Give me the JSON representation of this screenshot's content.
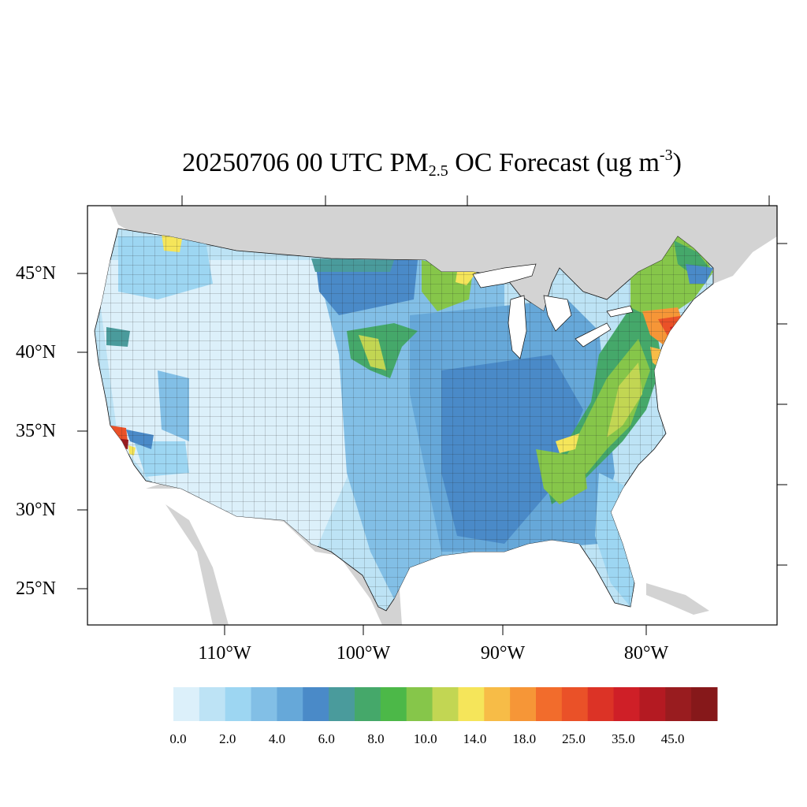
{
  "title": {
    "prefix": "20250706 00 UTC PM",
    "sub": "2.5",
    "middle": " OC Forecast (ug m",
    "sup": "-3",
    "suffix": ")"
  },
  "map": {
    "region": "Contiguous United States",
    "background_land_color": "#d3d3d3",
    "ocean_color": "#ffffff",
    "county_border_color": "#1a1a1a",
    "latitude_labels": [
      "45°N",
      "40°N",
      "35°N",
      "30°N",
      "25°N"
    ],
    "longitude_labels": [
      "110°W",
      "100°W",
      "90°W",
      "80°W"
    ]
  },
  "colorbar": {
    "colors": [
      "#dcf0fa",
      "#bde3f5",
      "#9dd6f2",
      "#82bfe6",
      "#66a8d9",
      "#4a8ac8",
      "#4a9b9c",
      "#45a86a",
      "#4cb848",
      "#86c64a",
      "#c2d653",
      "#f5e55a",
      "#f7bc47",
      "#f69637",
      "#f26c2c",
      "#ea5128",
      "#dc3326",
      "#cf1f27",
      "#b41a22",
      "#991c1f",
      "#86181a"
    ],
    "labels": [
      "0.0",
      "2.0",
      "4.0",
      "6.0",
      "8.0",
      "10.0",
      "14.0",
      "18.0",
      "25.0",
      "35.0",
      "45.0"
    ]
  }
}
